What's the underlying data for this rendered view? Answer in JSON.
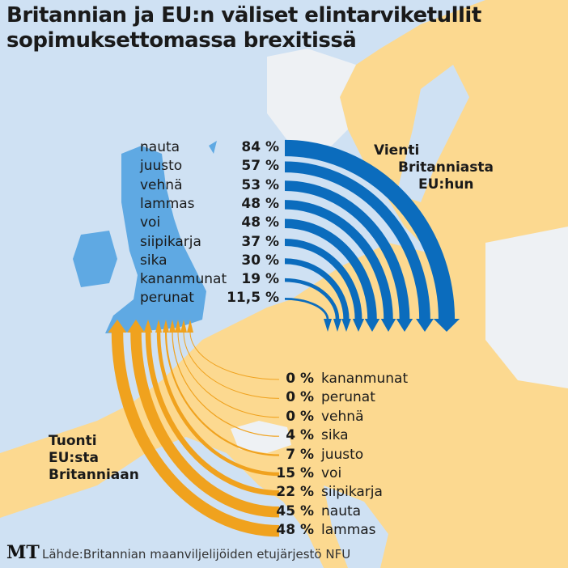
{
  "title_line1": "Britannian ja EU:n väliset elintarviketullit",
  "title_line2": "sopimuksettomassa brexitissä",
  "colors": {
    "export": "#0b6cbd",
    "import": "#f0a21e",
    "land": "#fcd990",
    "sea": "#cfe1f3",
    "uk": "#5fa9e3",
    "nonEU": "#eef1f4"
  },
  "chart_data": {
    "type": "bar",
    "title": "Britannian ja EU:n väliset elintarviketullit sopimuksettomassa brexitissä",
    "unit": "%",
    "series": [
      {
        "name": "Vienti Britanniasta EU:hun",
        "categories": [
          "nauta",
          "juusto",
          "vehnä",
          "lammas",
          "voi",
          "siipikarja",
          "sika",
          "kananmunat",
          "perunat"
        ],
        "values": [
          84,
          57,
          53,
          48,
          48,
          37,
          30,
          19,
          11.5
        ],
        "labels": [
          "84 %",
          "57 %",
          "53 %",
          "48 %",
          "48 %",
          "37 %",
          "30 %",
          "19 %",
          "11,5 %"
        ]
      },
      {
        "name": "Tuonti EU:sta Britanniaan",
        "categories": [
          "kananmunat",
          "perunat",
          "vehnä",
          "sika",
          "juusto",
          "voi",
          "siipikarja",
          "nauta",
          "lammas"
        ],
        "values": [
          0,
          0,
          0,
          4,
          7,
          15,
          22,
          45,
          48
        ],
        "labels": [
          "0 %",
          "0 %",
          "0 %",
          "4 %",
          "7 %",
          "15 %",
          "22 %",
          "45 %",
          "48 %"
        ]
      }
    ]
  },
  "export_heading": [
    "Vienti",
    "Britanniasta",
    "EU:hun"
  ],
  "import_heading": [
    "Tuonti",
    "EU:sta",
    "Britanniaan"
  ],
  "logo": "MT",
  "source": "Lähde:Britannian maanviljelijöiden etujärjestö NFU"
}
